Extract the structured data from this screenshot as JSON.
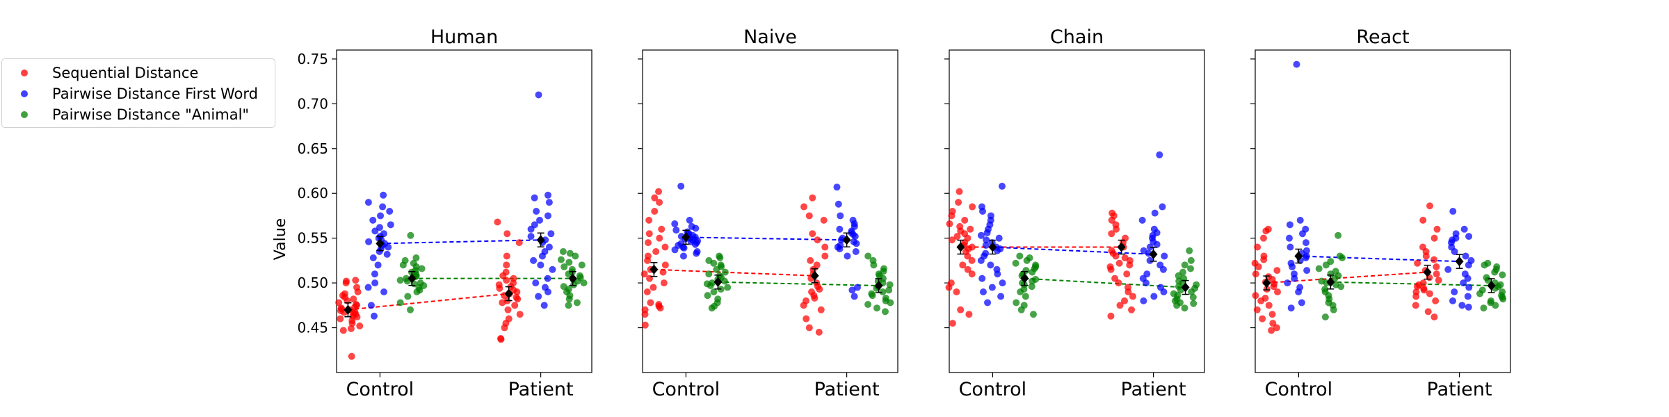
{
  "legend": {
    "items": [
      {
        "label": "Sequential Distance",
        "color": "#ff0000"
      },
      {
        "label": "Pairwise Distance First Word",
        "color": "#0000ff"
      },
      {
        "label": "Pairwise Distance \"Animal\"",
        "color": "#008000"
      }
    ]
  },
  "chart_data": [
    {
      "type": "scatter",
      "title": "Human",
      "ylabel": "Value",
      "ylim": [
        0.4,
        0.76
      ],
      "yticks": [
        "0.45",
        "0.50",
        "0.55",
        "0.60",
        "0.65",
        "0.70",
        "0.75"
      ],
      "categories": [
        "Control",
        "Patient"
      ],
      "series": [
        {
          "name": "Sequential Distance",
          "means": [
            0.47,
            0.488
          ],
          "values": [
            [
              0.418,
              0.447,
              0.449,
              0.452,
              0.455,
              0.458,
              0.46,
              0.462,
              0.463,
              0.465,
              0.466,
              0.467,
              0.468,
              0.469,
              0.47,
              0.471,
              0.472,
              0.473,
              0.475,
              0.476,
              0.478,
              0.48,
              0.482,
              0.484,
              0.486,
              0.488,
              0.49,
              0.495,
              0.5,
              0.502,
              0.503
            ],
            [
              0.437,
              0.438,
              0.45,
              0.455,
              0.46,
              0.465,
              0.47,
              0.475,
              0.478,
              0.48,
              0.482,
              0.484,
              0.486,
              0.488,
              0.49,
              0.492,
              0.494,
              0.496,
              0.498,
              0.5,
              0.503,
              0.505,
              0.508,
              0.512,
              0.52,
              0.53,
              0.545,
              0.555,
              0.568
            ]
          ]
        },
        {
          "name": "Pairwise Distance First Word",
          "means": [
            0.544,
            0.548
          ],
          "values": [
            [
              0.463,
              0.475,
              0.49,
              0.495,
              0.5,
              0.51,
              0.52,
              0.528,
              0.532,
              0.535,
              0.538,
              0.54,
              0.542,
              0.544,
              0.546,
              0.548,
              0.55,
              0.552,
              0.555,
              0.558,
              0.562,
              0.565,
              0.57,
              0.575,
              0.58,
              0.585,
              0.59,
              0.598
            ],
            [
              0.475,
              0.485,
              0.49,
              0.495,
              0.5,
              0.505,
              0.515,
              0.52,
              0.525,
              0.53,
              0.535,
              0.54,
              0.545,
              0.548,
              0.552,
              0.555,
              0.56,
              0.565,
              0.57,
              0.575,
              0.58,
              0.59,
              0.595,
              0.598,
              0.71
            ]
          ]
        },
        {
          "name": "Pairwise Distance \"Animal\"",
          "means": [
            0.505,
            0.505
          ],
          "values": [
            [
              0.47,
              0.478,
              0.485,
              0.49,
              0.492,
              0.495,
              0.497,
              0.499,
              0.5,
              0.502,
              0.503,
              0.505,
              0.506,
              0.507,
              0.508,
              0.51,
              0.512,
              0.514,
              0.516,
              0.518,
              0.52,
              0.522,
              0.525,
              0.528,
              0.553
            ],
            [
              0.475,
              0.478,
              0.482,
              0.486,
              0.49,
              0.493,
              0.496,
              0.498,
              0.5,
              0.502,
              0.504,
              0.506,
              0.508,
              0.51,
              0.512,
              0.515,
              0.518,
              0.52,
              0.523,
              0.526,
              0.53,
              0.533,
              0.535
            ]
          ]
        }
      ]
    },
    {
      "type": "scatter",
      "title": "Naive",
      "ylim": [
        0.4,
        0.76
      ],
      "categories": [
        "Control",
        "Patient"
      ],
      "series": [
        {
          "name": "Sequential Distance",
          "means": [
            0.515,
            0.508
          ],
          "values": [
            [
              0.453,
              0.465,
              0.47,
              0.472,
              0.474,
              0.476,
              0.478,
              0.49,
              0.495,
              0.5,
              0.505,
              0.51,
              0.512,
              0.515,
              0.52,
              0.525,
              0.53,
              0.535,
              0.54,
              0.545,
              0.55,
              0.555,
              0.56,
              0.57,
              0.58,
              0.59,
              0.595,
              0.602
            ],
            [
              0.445,
              0.45,
              0.46,
              0.47,
              0.475,
              0.48,
              0.483,
              0.486,
              0.49,
              0.493,
              0.496,
              0.5,
              0.505,
              0.51,
              0.515,
              0.52,
              0.525,
              0.53,
              0.54,
              0.548,
              0.555,
              0.57,
              0.575,
              0.585,
              0.595
            ]
          ]
        },
        {
          "name": "Pairwise Distance First Word",
          "means": [
            0.551,
            0.548
          ],
          "values": [
            [
              0.53,
              0.533,
              0.535,
              0.537,
              0.539,
              0.54,
              0.542,
              0.543,
              0.544,
              0.545,
              0.546,
              0.547,
              0.548,
              0.549,
              0.55,
              0.551,
              0.552,
              0.553,
              0.554,
              0.555,
              0.557,
              0.559,
              0.561,
              0.563,
              0.566,
              0.57,
              0.608
            ],
            [
              0.485,
              0.492,
              0.495,
              0.53,
              0.535,
              0.538,
              0.54,
              0.542,
              0.544,
              0.546,
              0.548,
              0.55,
              0.552,
              0.554,
              0.556,
              0.558,
              0.56,
              0.563,
              0.566,
              0.57,
              0.575,
              0.588,
              0.607
            ]
          ]
        },
        {
          "name": "Pairwise Distance \"Animal\"",
          "means": [
            0.501,
            0.497
          ],
          "values": [
            [
              0.472,
              0.474,
              0.478,
              0.482,
              0.486,
              0.49,
              0.493,
              0.495,
              0.497,
              0.499,
              0.5,
              0.502,
              0.504,
              0.506,
              0.508,
              0.51,
              0.512,
              0.515,
              0.518,
              0.52,
              0.522,
              0.525,
              0.528,
              0.53
            ],
            [
              0.468,
              0.472,
              0.476,
              0.478,
              0.48,
              0.483,
              0.486,
              0.488,
              0.49,
              0.492,
              0.494,
              0.496,
              0.498,
              0.5,
              0.502,
              0.505,
              0.508,
              0.51,
              0.513,
              0.516,
              0.52,
              0.525,
              0.53
            ]
          ]
        }
      ]
    },
    {
      "type": "scatter",
      "title": "Chain",
      "ylim": [
        0.4,
        0.76
      ],
      "categories": [
        "Control",
        "Patient"
      ],
      "series": [
        {
          "name": "Sequential Distance",
          "means": [
            0.54,
            0.54
          ],
          "values": [
            [
              0.455,
              0.465,
              0.47,
              0.49,
              0.495,
              0.5,
              0.51,
              0.515,
              0.52,
              0.525,
              0.53,
              0.535,
              0.538,
              0.54,
              0.542,
              0.545,
              0.548,
              0.55,
              0.552,
              0.555,
              0.558,
              0.56,
              0.563,
              0.566,
              0.57,
              0.575,
              0.58,
              0.585,
              0.59,
              0.602
            ],
            [
              0.463,
              0.47,
              0.475,
              0.48,
              0.485,
              0.49,
              0.495,
              0.5,
              0.505,
              0.51,
              0.515,
              0.518,
              0.52,
              0.522,
              0.525,
              0.528,
              0.53,
              0.533,
              0.536,
              0.54,
              0.545,
              0.55,
              0.555,
              0.56,
              0.565,
              0.57,
              0.575,
              0.578
            ]
          ]
        },
        {
          "name": "Pairwise Distance First Word",
          "means": [
            0.54,
            0.532
          ],
          "values": [
            [
              0.478,
              0.485,
              0.49,
              0.495,
              0.5,
              0.505,
              0.51,
              0.515,
              0.52,
              0.525,
              0.53,
              0.533,
              0.536,
              0.538,
              0.54,
              0.542,
              0.545,
              0.548,
              0.55,
              0.553,
              0.556,
              0.56,
              0.565,
              0.57,
              0.575,
              0.58,
              0.585,
              0.608
            ],
            [
              0.48,
              0.485,
              0.49,
              0.495,
              0.5,
              0.505,
              0.51,
              0.515,
              0.52,
              0.525,
              0.53,
              0.533,
              0.536,
              0.54,
              0.543,
              0.546,
              0.55,
              0.553,
              0.556,
              0.56,
              0.57,
              0.578,
              0.585,
              0.643
            ]
          ]
        },
        {
          "name": "Pairwise Distance \"Animal\"",
          "means": [
            0.505,
            0.495
          ],
          "values": [
            [
              0.465,
              0.47,
              0.475,
              0.478,
              0.485,
              0.49,
              0.493,
              0.496,
              0.498,
              0.5,
              0.502,
              0.504,
              0.506,
              0.508,
              0.51,
              0.512,
              0.514,
              0.516,
              0.518,
              0.52,
              0.522,
              0.525,
              0.528,
              0.53
            ],
            [
              0.472,
              0.475,
              0.477,
              0.478,
              0.48,
              0.482,
              0.484,
              0.486,
              0.488,
              0.49,
              0.492,
              0.494,
              0.496,
              0.498,
              0.5,
              0.502,
              0.505,
              0.508,
              0.512,
              0.516,
              0.52,
              0.525,
              0.536
            ]
          ]
        }
      ]
    },
    {
      "type": "scatter",
      "title": "React",
      "ylim": [
        0.4,
        0.76
      ],
      "categories": [
        "Control",
        "Patient"
      ],
      "series": [
        {
          "name": "Sequential Distance",
          "means": [
            0.5,
            0.512
          ],
          "values": [
            [
              0.447,
              0.45,
              0.455,
              0.46,
              0.465,
              0.47,
              0.475,
              0.48,
              0.483,
              0.486,
              0.49,
              0.493,
              0.496,
              0.499,
              0.501,
              0.504,
              0.507,
              0.51,
              0.514,
              0.518,
              0.522,
              0.526,
              0.53,
              0.54,
              0.55,
              0.558,
              0.56
            ],
            [
              0.462,
              0.468,
              0.475,
              0.48,
              0.485,
              0.488,
              0.49,
              0.492,
              0.494,
              0.496,
              0.498,
              0.5,
              0.503,
              0.506,
              0.51,
              0.514,
              0.518,
              0.522,
              0.526,
              0.53,
              0.535,
              0.54,
              0.55,
              0.56,
              0.57,
              0.586
            ]
          ]
        },
        {
          "name": "Pairwise Distance First Word",
          "means": [
            0.53,
            0.524
          ],
          "values": [
            [
              0.472,
              0.478,
              0.49,
              0.495,
              0.5,
              0.505,
              0.51,
              0.514,
              0.518,
              0.522,
              0.525,
              0.528,
              0.53,
              0.533,
              0.536,
              0.54,
              0.545,
              0.55,
              0.555,
              0.56,
              0.565,
              0.57,
              0.744
            ],
            [
              0.473,
              0.475,
              0.48,
              0.485,
              0.49,
              0.495,
              0.5,
              0.505,
              0.51,
              0.515,
              0.52,
              0.525,
              0.53,
              0.535,
              0.54,
              0.545,
              0.548,
              0.55,
              0.552,
              0.555,
              0.56,
              0.58
            ]
          ]
        },
        {
          "name": "Pairwise Distance \"Animal\"",
          "means": [
            0.501,
            0.497
          ],
          "values": [
            [
              0.462,
              0.47,
              0.475,
              0.478,
              0.482,
              0.486,
              0.49,
              0.493,
              0.496,
              0.498,
              0.5,
              0.502,
              0.505,
              0.508,
              0.51,
              0.513,
              0.516,
              0.52,
              0.524,
              0.528,
              0.53,
              0.553
            ],
            [
              0.472,
              0.475,
              0.478,
              0.48,
              0.482,
              0.484,
              0.486,
              0.488,
              0.49,
              0.492,
              0.494,
              0.496,
              0.498,
              0.5,
              0.503,
              0.506,
              0.509,
              0.512,
              0.515,
              0.518,
              0.52,
              0.522
            ]
          ]
        }
      ]
    }
  ]
}
